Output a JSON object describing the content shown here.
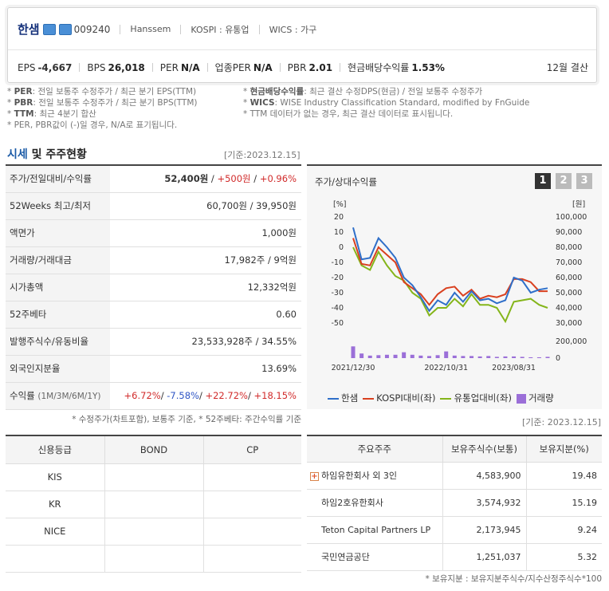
{
  "header": {
    "company": "한샘",
    "code": "009240",
    "eng": "Hanssem",
    "market": "KOSPI : 유통업",
    "wics": "WICS : 가구",
    "metrics": [
      {
        "k": "EPS",
        "v": "-4,667"
      },
      {
        "k": "BPS",
        "v": "26,018"
      },
      {
        "k": "PER",
        "v": "N/A"
      },
      {
        "k": "업종PER",
        "v": "N/A"
      },
      {
        "k": "PBR",
        "v": "2.01"
      },
      {
        "k": "현금배당수익률",
        "v": "1.53%"
      }
    ],
    "settlement": "12월 결산"
  },
  "notes": {
    "left": [
      {
        "b": "PER",
        "t": ": 전일 보통주 수정주가 / 최근 분기 EPS(TTM)"
      },
      {
        "b": "PBR",
        "t": ": 전일 보통주 수정주가 / 최근 분기 BPS(TTM)"
      },
      {
        "b": "TTM",
        "t": ": 최근 4분기 합산"
      },
      {
        "b": "",
        "t": "PER, PBR값이 (-)일 경우, N/A로 표기됩니다."
      }
    ],
    "right": [
      {
        "b": "현금배당수익률",
        "t": ": 최근 결산 수정DPS(현금) / 전일 보통주 수정주가"
      },
      {
        "b": "WICS",
        "t": ": WISE Industry Classification Standard, modified by FnGuide"
      },
      {
        "b": "",
        "t": "TTM 데이터가 없는 경우, 최근 결산 데이터로 표시됩니다."
      }
    ]
  },
  "section": {
    "title_blue": "시세",
    "title_rest": " 및 주주현황",
    "date": "[기준:2023.12.15]"
  },
  "quote": {
    "rows": [
      {
        "label": "주가/전일대비/수익률",
        "value": ""
      },
      {
        "label": "52Weeks 최고/최저",
        "value": "60,700원 / 39,950원"
      },
      {
        "label": "액면가",
        "value": "1,000원"
      },
      {
        "label": "거래량/거래대금",
        "value": "17,982주 / 9억원"
      },
      {
        "label": "시가총액",
        "value": "12,332억원"
      },
      {
        "label": "52주베타",
        "value": "0.60"
      },
      {
        "label": "발행주식수/유동비율",
        "value": "23,533,928주 / 34.55%"
      },
      {
        "label": "외국인지분율",
        "value": "13.69%"
      },
      {
        "label": "수익률",
        "value": ""
      }
    ],
    "price": "52,400원",
    "change": "+500원",
    "rate": "+0.96%",
    "returns_label_sub": "(1M/3M/6M/1Y)",
    "returns": [
      "+6.72%",
      "-7.58%",
      "+22.72%",
      "+18.15%"
    ],
    "note": "* 수정주가(차트포함), 보통주 기준, * 52주베타: 주간수익률 기준"
  },
  "chart": {
    "title": "주가/상대수익률",
    "tabs": [
      "1",
      "2",
      "3"
    ],
    "left_unit": "[%]",
    "right_unit": "[원]",
    "legend": [
      "한샘",
      "KOSPI대비(좌)",
      "유통업대비(좌)",
      "거래량"
    ]
  },
  "chart_data": {
    "type": "line",
    "x_ticks": [
      "2021/12/30",
      "2022/10/31",
      "2023/08/31"
    ],
    "left_axis": {
      "label": "[%]",
      "ticks": [
        20,
        10,
        0,
        -10,
        -20,
        -30,
        -40,
        -50
      ],
      "range": [
        -50,
        20
      ]
    },
    "right_axis": {
      "label": "[원]",
      "ticks": [
        100000,
        90000,
        80000,
        70000,
        60000,
        50000,
        40000,
        30000
      ]
    },
    "volume_axis": {
      "ticks": [
        200000,
        0
      ]
    },
    "colors": {
      "hanssem": "#2f6fc9",
      "kospi": "#d9401f",
      "industry": "#84b51a",
      "volume": "#9b6fd8"
    },
    "series": [
      {
        "name": "한샘",
        "values": [
          13,
          -8,
          -7,
          6,
          0,
          -7,
          -20,
          -25,
          -33,
          -42,
          -35,
          -38,
          -30,
          -36,
          -29,
          -35,
          -34,
          -37,
          -35,
          -20,
          -22,
          -30,
          -28,
          -27
        ]
      },
      {
        "name": "KOSPI대비(좌)",
        "values": [
          6,
          -11,
          -12,
          0,
          -5,
          -10,
          -23,
          -27,
          -31,
          -38,
          -31,
          -27,
          -26,
          -32,
          -28,
          -34,
          -32,
          -33,
          -31,
          -21,
          -21,
          -23,
          -29,
          -29
        ]
      },
      {
        "name": "유통업대비(좌)",
        "values": [
          0,
          -12,
          -15,
          -3,
          -12,
          -19,
          -22,
          -30,
          -34,
          -45,
          -40,
          -40,
          -34,
          -39,
          -31,
          -38,
          -38,
          -40,
          -49,
          -36,
          -35,
          -34,
          -38,
          -40
        ]
      },
      {
        "name": "거래량",
        "values": [
          140000,
          55000,
          30000,
          35000,
          40000,
          40000,
          70000,
          40000,
          30000,
          25000,
          35000,
          80000,
          30000,
          25000,
          25000,
          20000,
          25000,
          15000,
          20000,
          20000,
          15000,
          10000,
          10000,
          15000
        ]
      }
    ]
  },
  "credit": {
    "headers": [
      "신용등급",
      "BOND",
      "CP"
    ],
    "rows": [
      [
        "KIS",
        "",
        ""
      ],
      [
        "KR",
        "",
        ""
      ],
      [
        "NICE",
        "",
        ""
      ],
      [
        "",
        "",
        ""
      ]
    ]
  },
  "holders": {
    "date": "[기준: 2023.12.15]",
    "headers": [
      "주요주주",
      "보유주식수(보통)",
      "보유지분(%)"
    ],
    "rows": [
      {
        "name": "하임유한회사 외 3인",
        "shares": "4,583,900",
        "pct": "19.48",
        "expand": true
      },
      {
        "name": "하임2호유한회사",
        "shares": "3,574,932",
        "pct": "15.19"
      },
      {
        "name": "Teton Capital Partners LP",
        "shares": "2,173,945",
        "pct": "9.24"
      },
      {
        "name": "국민연금공단",
        "shares": "1,251,037",
        "pct": "5.32"
      }
    ],
    "note": "* 보유지분 : 보유지분주식수/지수산정주식수*100"
  }
}
